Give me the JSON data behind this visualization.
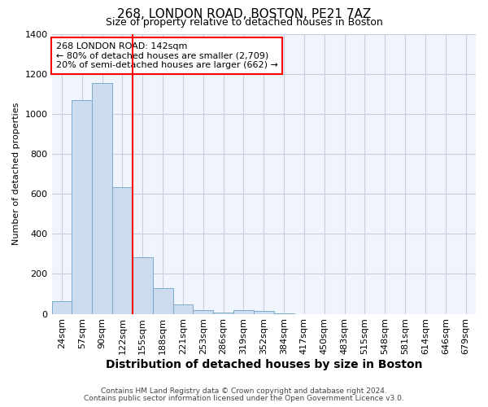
{
  "title1": "268, LONDON ROAD, BOSTON, PE21 7AZ",
  "title2": "Size of property relative to detached houses in Boston",
  "xlabel": "Distribution of detached houses by size in Boston",
  "ylabel": "Number of detached properties",
  "categories": [
    "24sqm",
    "57sqm",
    "90sqm",
    "122sqm",
    "155sqm",
    "188sqm",
    "221sqm",
    "253sqm",
    "286sqm",
    "319sqm",
    "352sqm",
    "384sqm",
    "417sqm",
    "450sqm",
    "483sqm",
    "515sqm",
    "548sqm",
    "581sqm",
    "614sqm",
    "646sqm",
    "679sqm"
  ],
  "values": [
    65,
    1070,
    1155,
    635,
    285,
    130,
    48,
    20,
    5,
    20,
    15,
    3,
    0,
    0,
    0,
    0,
    0,
    0,
    0,
    0,
    0
  ],
  "bar_color": "#ccdcee",
  "bar_edge_color": "#7aaac8",
  "red_line_index": 3.5,
  "annotation_text": "268 LONDON ROAD: 142sqm\n← 80% of detached houses are smaller (2,709)\n20% of semi-detached houses are larger (662) →",
  "annotation_box_color": "white",
  "annotation_box_edge": "red",
  "ylim": [
    0,
    1400
  ],
  "yticks": [
    0,
    200,
    400,
    600,
    800,
    1000,
    1200,
    1400
  ],
  "footnote1": "Contains HM Land Registry data © Crown copyright and database right 2024.",
  "footnote2": "Contains public sector information licensed under the Open Government Licence v3.0.",
  "fig_facecolor": "#ffffff",
  "plot_bg_color": "#f0f4fc",
  "grid_color": "#c8d0e0",
  "title1_fontsize": 11,
  "title2_fontsize": 9,
  "xlabel_fontsize": 10,
  "ylabel_fontsize": 8,
  "tick_fontsize": 8,
  "annot_fontsize": 8
}
